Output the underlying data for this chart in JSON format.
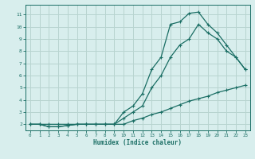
{
  "xlabel": "Humidex (Indice chaleur)",
  "bg_color": "#d8eeed",
  "grid_color": "#b8d4d0",
  "line_color": "#1a6e64",
  "xlim": [
    -0.5,
    23.5
  ],
  "ylim": [
    1.5,
    11.8
  ],
  "xticks": [
    0,
    1,
    2,
    3,
    4,
    5,
    6,
    7,
    8,
    9,
    10,
    11,
    12,
    13,
    14,
    15,
    16,
    17,
    18,
    19,
    20,
    21,
    22,
    23
  ],
  "yticks": [
    2,
    3,
    4,
    5,
    6,
    7,
    8,
    9,
    10,
    11
  ],
  "series": [
    {
      "x": [
        0,
        1,
        2,
        3,
        4,
        5,
        6,
        7,
        8,
        9,
        10,
        11,
        12,
        13,
        14,
        15,
        16,
        17,
        18,
        19,
        20,
        21,
        22,
        23
      ],
      "y": [
        2,
        2,
        2,
        2,
        2,
        2,
        2,
        2,
        2,
        2,
        2,
        2.3,
        2.5,
        2.8,
        3.0,
        3.3,
        3.6,
        3.9,
        4.1,
        4.3,
        4.6,
        4.8,
        5.0,
        5.2
      ]
    },
    {
      "x": [
        0,
        1,
        2,
        3,
        4,
        5,
        6,
        7,
        8,
        9,
        10,
        11,
        12,
        13,
        14,
        15,
        16,
        17,
        18,
        19,
        20,
        21,
        22,
        23
      ],
      "y": [
        2,
        2,
        1.8,
        1.8,
        1.9,
        2.0,
        2.0,
        2.0,
        2.0,
        2.0,
        2.5,
        3.0,
        3.5,
        5.0,
        6.0,
        7.5,
        8.5,
        9.0,
        10.2,
        9.5,
        9.0,
        8.0,
        7.5,
        6.5
      ]
    },
    {
      "x": [
        0,
        1,
        2,
        3,
        4,
        5,
        6,
        7,
        8,
        9,
        10,
        11,
        12,
        13,
        14,
        15,
        16,
        17,
        18,
        19,
        20,
        21,
        22,
        23
      ],
      "y": [
        2,
        2,
        1.8,
        1.8,
        1.9,
        2.0,
        2.0,
        2.0,
        2.0,
        2.0,
        3.0,
        3.5,
        4.5,
        6.5,
        7.5,
        10.2,
        10.4,
        11.1,
        11.2,
        10.2,
        9.5,
        8.5,
        7.5,
        6.5
      ]
    }
  ]
}
